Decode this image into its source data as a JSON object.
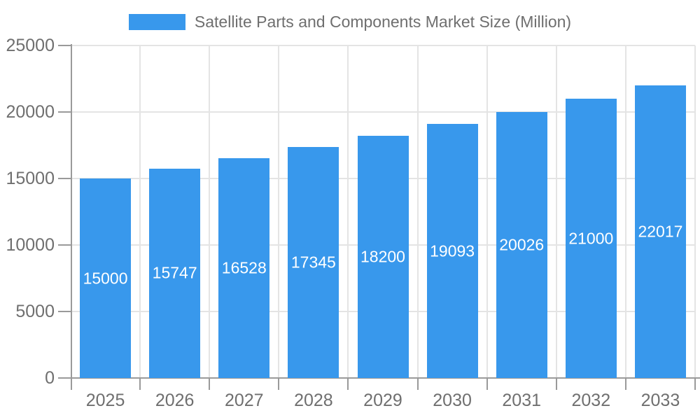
{
  "colors": {
    "bar": "#3898EC",
    "axis_line": "#9a9a9a",
    "grid_line": "#e4e4e4",
    "axis_text": "#6f6f6f",
    "title_text": "#6f6f6f",
    "bar_label": "#ffffff",
    "background": "#ffffff"
  },
  "legend": {
    "swatch_color": "#3898EC",
    "label": "Satellite Parts and Components Market Size (Million)"
  },
  "chart_data": {
    "type": "bar",
    "title": "Satellite Parts and Components Market Size (Million)",
    "categories": [
      "2025",
      "2026",
      "2027",
      "2028",
      "2029",
      "2030",
      "2031",
      "2032",
      "2033"
    ],
    "values": [
      15000,
      15747,
      16528,
      17345,
      18200,
      19093,
      20026,
      21000,
      22017
    ],
    "xlabel": "",
    "ylabel": "",
    "ylim": [
      0,
      25000
    ],
    "y_ticks": [
      0,
      5000,
      10000,
      15000,
      20000,
      25000
    ],
    "grid": true,
    "legend_position": "top",
    "bar_label_position": "inside-center"
  }
}
